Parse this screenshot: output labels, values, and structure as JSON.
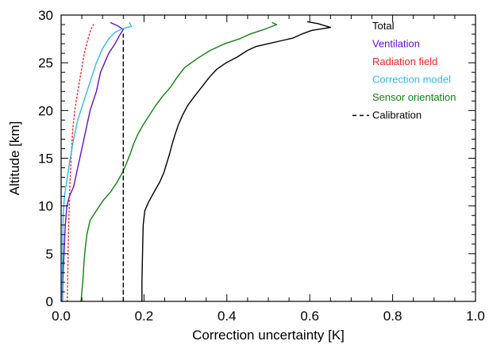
{
  "chart_data": {
    "type": "line",
    "xlabel": "Correction uncertainty [K]",
    "ylabel": "Altitude [km]",
    "xlim": [
      0.0,
      1.0
    ],
    "ylim": [
      0,
      30
    ],
    "x_ticks": [
      "0.0",
      "0.2",
      "0.4",
      "0.6",
      "0.8",
      "1.0"
    ],
    "y_ticks": [
      "0",
      "5",
      "10",
      "15",
      "20",
      "25",
      "30"
    ],
    "grid": false,
    "legend_position": "top-right",
    "series": [
      {
        "name": "Total",
        "color": "#000000",
        "dash": "solid",
        "points": [
          [
            0.195,
            0
          ],
          [
            0.195,
            2
          ],
          [
            0.196,
            4
          ],
          [
            0.197,
            6
          ],
          [
            0.198,
            8
          ],
          [
            0.202,
            9.5
          ],
          [
            0.212,
            10.5
          ],
          [
            0.225,
            11.5
          ],
          [
            0.238,
            12.5
          ],
          [
            0.248,
            13.5
          ],
          [
            0.255,
            14.5
          ],
          [
            0.262,
            15.5
          ],
          [
            0.268,
            16.5
          ],
          [
            0.275,
            17.5
          ],
          [
            0.283,
            18.5
          ],
          [
            0.293,
            19.5
          ],
          [
            0.305,
            20.5
          ],
          [
            0.322,
            21.5
          ],
          [
            0.34,
            22.5
          ],
          [
            0.358,
            23.5
          ],
          [
            0.375,
            24.3
          ],
          [
            0.398,
            25
          ],
          [
            0.425,
            25.6
          ],
          [
            0.45,
            26.3
          ],
          [
            0.47,
            26.7
          ],
          [
            0.5,
            27
          ],
          [
            0.53,
            27.3
          ],
          [
            0.56,
            27.6
          ],
          [
            0.58,
            28
          ],
          [
            0.605,
            28.4
          ],
          [
            0.65,
            28.7
          ],
          [
            0.62,
            29.1
          ],
          [
            0.595,
            29.3
          ]
        ]
      },
      {
        "name": "Ventilation",
        "color": "#6010c8",
        "dash": "solid",
        "points": [
          [
            0.003,
            0
          ],
          [
            0.004,
            2
          ],
          [
            0.006,
            4
          ],
          [
            0.008,
            6
          ],
          [
            0.01,
            8
          ],
          [
            0.014,
            10
          ],
          [
            0.02,
            11
          ],
          [
            0.03,
            12
          ],
          [
            0.04,
            14
          ],
          [
            0.05,
            16
          ],
          [
            0.06,
            18
          ],
          [
            0.07,
            20
          ],
          [
            0.085,
            22
          ],
          [
            0.095,
            24
          ],
          [
            0.105,
            25
          ],
          [
            0.115,
            26
          ],
          [
            0.13,
            27
          ],
          [
            0.14,
            27.8
          ],
          [
            0.15,
            28.5
          ],
          [
            0.135,
            28.9
          ],
          [
            0.12,
            29.2
          ]
        ]
      },
      {
        "name": "Radiation field",
        "color": "#ff2020",
        "dash": "dotted",
        "points": [
          [
            0.015,
            0
          ],
          [
            0.016,
            3
          ],
          [
            0.017,
            6
          ],
          [
            0.019,
            9
          ],
          [
            0.021,
            12
          ],
          [
            0.024,
            15
          ],
          [
            0.028,
            18
          ],
          [
            0.033,
            20
          ],
          [
            0.04,
            22
          ],
          [
            0.048,
            24
          ],
          [
            0.056,
            26
          ],
          [
            0.065,
            27.5
          ],
          [
            0.072,
            28.5
          ],
          [
            0.078,
            29
          ]
        ]
      },
      {
        "name": "Correction model",
        "color": "#30b8f0",
        "dash": "solid",
        "points": [
          [
            0.002,
            0
          ],
          [
            0.003,
            3
          ],
          [
            0.004,
            6
          ],
          [
            0.005,
            9
          ],
          [
            0.008,
            11
          ],
          [
            0.015,
            13
          ],
          [
            0.022,
            15
          ],
          [
            0.03,
            17
          ],
          [
            0.04,
            19
          ],
          [
            0.055,
            21
          ],
          [
            0.07,
            23
          ],
          [
            0.085,
            25
          ],
          [
            0.1,
            26.5
          ],
          [
            0.115,
            27.5
          ],
          [
            0.13,
            28.2
          ],
          [
            0.15,
            28.6
          ],
          [
            0.17,
            28.8
          ],
          [
            0.165,
            29.2
          ]
        ]
      },
      {
        "name": "Sensor orientation",
        "color": "#108010",
        "dash": "solid",
        "points": [
          [
            0.048,
            0
          ],
          [
            0.05,
            1
          ],
          [
            0.053,
            2.5
          ],
          [
            0.055,
            4
          ],
          [
            0.058,
            5.5
          ],
          [
            0.062,
            7
          ],
          [
            0.07,
            8.5
          ],
          [
            0.085,
            9.5
          ],
          [
            0.1,
            10.5
          ],
          [
            0.12,
            11.5
          ],
          [
            0.135,
            12.5
          ],
          [
            0.148,
            13.5
          ],
          [
            0.158,
            14.5
          ],
          [
            0.167,
            15.5
          ],
          [
            0.175,
            16.5
          ],
          [
            0.185,
            17.5
          ],
          [
            0.198,
            18.5
          ],
          [
            0.213,
            19.5
          ],
          [
            0.228,
            20.5
          ],
          [
            0.245,
            21.5
          ],
          [
            0.265,
            22.5
          ],
          [
            0.28,
            23.5
          ],
          [
            0.298,
            24.5
          ],
          [
            0.33,
            25.5
          ],
          [
            0.36,
            26.3
          ],
          [
            0.395,
            27
          ],
          [
            0.43,
            27.5
          ],
          [
            0.455,
            28
          ],
          [
            0.49,
            28.5
          ],
          [
            0.52,
            29
          ],
          [
            0.51,
            29.2
          ]
        ]
      },
      {
        "name": "Calibration",
        "color": "#000000",
        "dash": "dashed",
        "points": [
          [
            0.15,
            0
          ],
          [
            0.15,
            28
          ]
        ]
      }
    ]
  }
}
